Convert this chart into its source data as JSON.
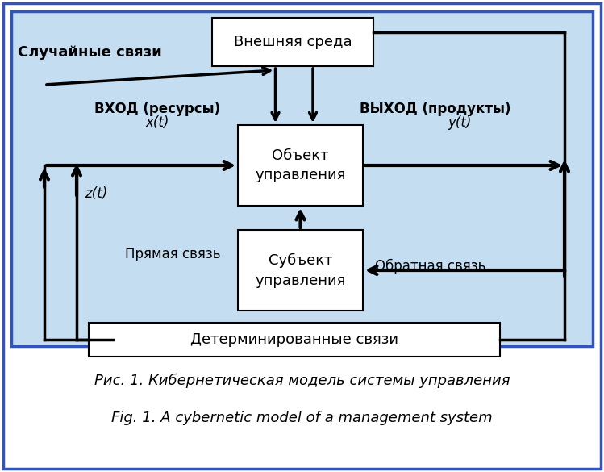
{
  "bg_outer": "#ffffff",
  "bg_inner_top": "#b8d4ed",
  "bg_inner_bottom": "#daeaf8",
  "border_outer_color": "#3355bb",
  "border_inner_color": "#3355bb",
  "box_fill": "#ffffff",
  "box_edge": "#000000",
  "text_color": "#000000",
  "arrow_color": "#000000",
  "title_ru": "Рис. 1. Кибернетическая модель системы управления",
  "title_en": "Fig. 1. A cybernetic model of a management system",
  "label_random": "Случайные связи",
  "label_vhod": "ВХОД (ресурсы)",
  "label_xt": "x(t)",
  "label_vyhod": "ВЫХОД (продукты)",
  "label_yt": "y(t)",
  "label_zt": "z(t)",
  "label_pryamaya": "Прямая связь",
  "label_obratnaya": "Обратная связь",
  "label_vnesh": "Внешняя среда",
  "label_obekt": "Объект\nуправления",
  "label_subekt": "Субъект\nуправления",
  "label_determ": "Детерминированные связи"
}
